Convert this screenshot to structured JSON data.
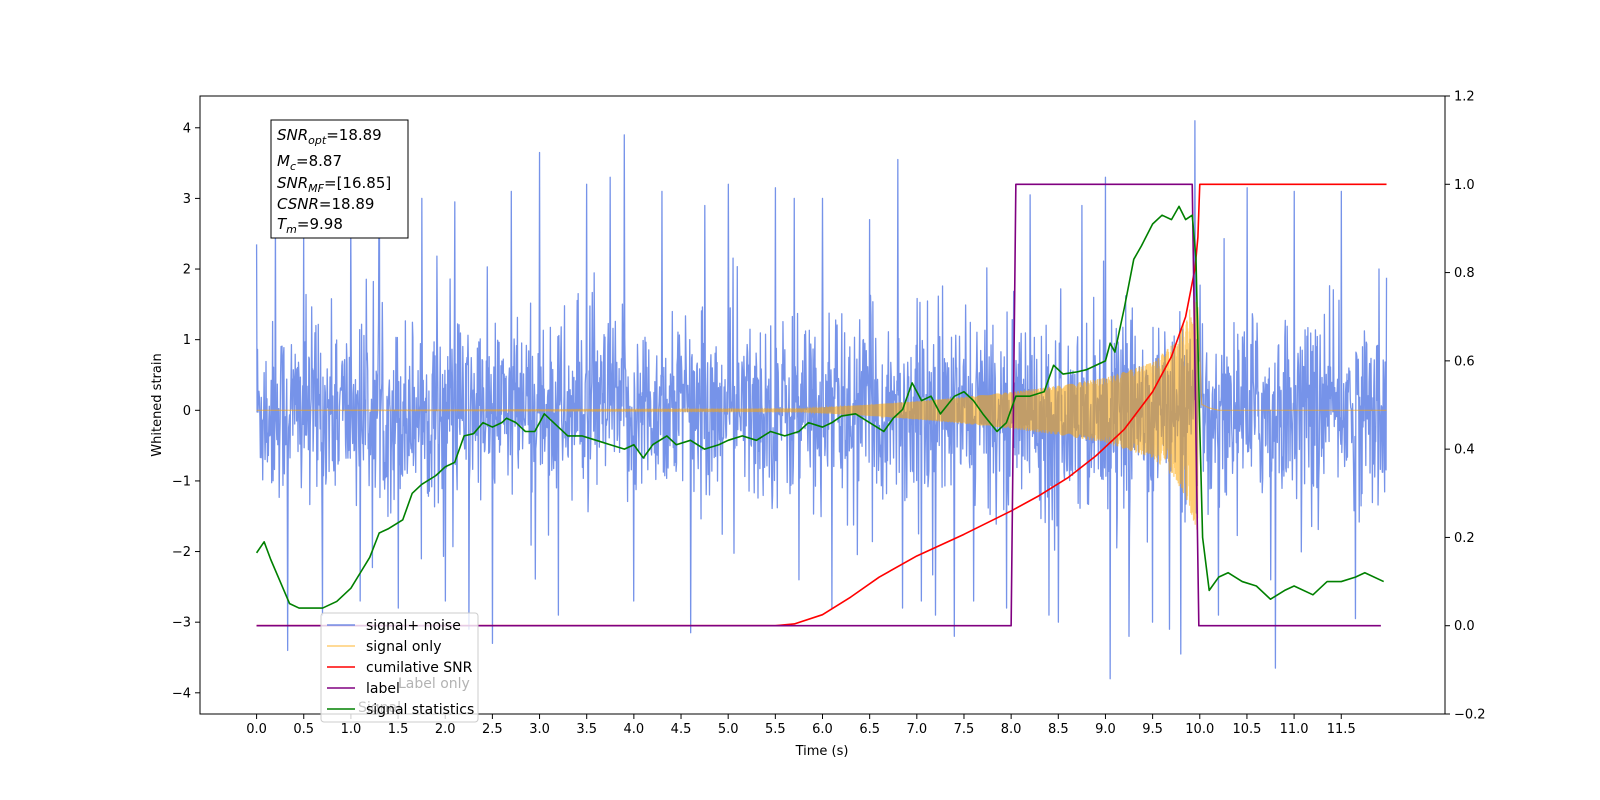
{
  "chart_data": {
    "type": "line",
    "xlabel": "Time (s)",
    "ylabel": "Whitened strain",
    "xlim": [
      -0.6,
      12.6
    ],
    "ylim": [
      -4.3,
      4.45
    ],
    "y2lim": [
      -0.2,
      1.2
    ],
    "x_ticks": [
      0.0,
      0.5,
      1.0,
      1.5,
      2.0,
      2.5,
      3.0,
      3.5,
      4.0,
      4.5,
      5.0,
      5.5,
      6.0,
      6.5,
      7.0,
      7.5,
      8.0,
      8.5,
      9.0,
      9.5,
      10.0,
      10.5,
      11.0,
      11.5
    ],
    "x_tick_labels": [
      "0.0",
      "0.5",
      "1.0",
      "1.5",
      "2.0",
      "2.5",
      "3.0",
      "3.5",
      "4.0",
      "4.5",
      "5.0",
      "5.5",
      "6.0",
      "6.5",
      "7.0",
      "7.5",
      "8.0",
      "8.5",
      "9.0",
      "9.5",
      "10.0",
      "10.5",
      "11.0",
      "11.5"
    ],
    "y_ticks": [
      -4,
      -3,
      -2,
      -1,
      0,
      1,
      2,
      3,
      4
    ],
    "y_tick_labels": [
      "−4",
      "−3",
      "−2",
      "−1",
      "0",
      "1",
      "2",
      "3",
      "4"
    ],
    "y2_ticks": [
      -0.2,
      0.0,
      0.2,
      0.4,
      0.6,
      0.8,
      1.0,
      1.2
    ],
    "y2_tick_labels": [
      "−0.2",
      "0.0",
      "0.2",
      "0.4",
      "0.6",
      "0.8",
      "1.0",
      "1.2"
    ],
    "legend_placement": "lower-left",
    "legend": [
      {
        "label": "signal+ noise",
        "color": "#4169e1"
      },
      {
        "label": "signal only",
        "color": "#ffa500"
      },
      {
        "label": "cumilative SNR",
        "color": "#ff0000"
      },
      {
        "label": "label",
        "color": "#800080"
      },
      {
        "label": "signal statistics",
        "color": "#008000"
      }
    ],
    "hidden_legend_text": [
      "Label only",
      "Signal"
    ],
    "annotation": {
      "lines": [
        {
          "main": "SNR",
          "sub": "opt",
          "value": "=18.89"
        },
        {
          "main": "M",
          "sub": "c",
          "value": "=8.87"
        },
        {
          "main": "SNR",
          "sub": "MF",
          "value": "=[16.85]"
        },
        {
          "main": "CSNR",
          "sub": "",
          "value": "=18.89"
        },
        {
          "main": "T",
          "sub": "m",
          "value": "=9.98"
        }
      ]
    },
    "series": [
      {
        "name": "signal+ noise",
        "axis": "left",
        "color": "#4169e1",
        "kind": "noise",
        "x_range": [
          0.0,
          11.98
        ],
        "envelope_typical": 1.6,
        "peaks": [
          [
            0.0,
            2.35
          ],
          [
            0.2,
            2.7
          ],
          [
            0.33,
            -3.4
          ],
          [
            0.5,
            2.6
          ],
          [
            0.7,
            -2.9
          ],
          [
            1.0,
            2.8
          ],
          [
            1.1,
            -2.7
          ],
          [
            1.3,
            3.1
          ],
          [
            1.5,
            -2.8
          ],
          [
            1.75,
            3.0
          ],
          [
            2.0,
            -2.7
          ],
          [
            2.1,
            2.95
          ],
          [
            2.25,
            -3.1
          ],
          [
            2.5,
            -3.3
          ],
          [
            2.7,
            3.1
          ],
          [
            3.0,
            3.65
          ],
          [
            3.2,
            -2.9
          ],
          [
            3.5,
            3.2
          ],
          [
            3.75,
            3.3
          ],
          [
            3.9,
            3.9
          ],
          [
            4.0,
            -2.7
          ],
          [
            4.3,
            3.1
          ],
          [
            4.6,
            -3.15
          ],
          [
            4.75,
            2.9
          ],
          [
            5.0,
            3.2
          ],
          [
            5.5,
            3.15
          ],
          [
            5.7,
            3.0
          ],
          [
            5.75,
            -2.4
          ],
          [
            6.0,
            3.0
          ],
          [
            6.1,
            -2.8
          ],
          [
            6.5,
            2.7
          ],
          [
            6.8,
            3.55
          ],
          [
            6.85,
            -2.8
          ],
          [
            7.05,
            -2.7
          ],
          [
            7.2,
            -2.9
          ],
          [
            7.4,
            -3.2
          ],
          [
            7.6,
            -2.7
          ],
          [
            7.95,
            -2.8
          ],
          [
            8.2,
            3.05
          ],
          [
            8.4,
            -2.9
          ],
          [
            8.5,
            -3.0
          ],
          [
            8.75,
            2.9
          ],
          [
            9.0,
            3.3
          ],
          [
            9.05,
            -3.8
          ],
          [
            9.25,
            -3.2
          ],
          [
            9.5,
            -3.0
          ],
          [
            9.68,
            -3.1
          ],
          [
            9.8,
            -3.45
          ],
          [
            9.95,
            4.1
          ],
          [
            10.2,
            -2.9
          ],
          [
            10.5,
            3.15
          ],
          [
            10.75,
            -2.4
          ],
          [
            10.8,
            -3.65
          ],
          [
            11.0,
            3.1
          ],
          [
            11.5,
            3.1
          ],
          [
            11.65,
            -2.95
          ],
          [
            11.9,
            2.0
          ]
        ]
      },
      {
        "name": "signal only",
        "axis": "left",
        "color": "#ffa500",
        "kind": "chirp",
        "x_range": [
          0.0,
          11.98
        ],
        "merger_time": 9.98,
        "amplitude_points": [
          [
            0.0,
            0.0
          ],
          [
            5.8,
            0.02
          ],
          [
            6.0,
            0.04
          ],
          [
            6.5,
            0.08
          ],
          [
            7.0,
            0.13
          ],
          [
            7.5,
            0.19
          ],
          [
            8.0,
            0.26
          ],
          [
            8.5,
            0.35
          ],
          [
            9.0,
            0.46
          ],
          [
            9.5,
            0.68
          ],
          [
            9.75,
            0.98
          ],
          [
            9.9,
            1.45
          ],
          [
            9.98,
            1.75
          ],
          [
            10.02,
            0.1
          ],
          [
            10.1,
            0.04
          ],
          [
            10.2,
            0.0
          ],
          [
            11.98,
            0.0
          ]
        ]
      },
      {
        "name": "cumilative SNR",
        "axis": "right",
        "color": "#ff0000",
        "points": [
          [
            0.0,
            0.0
          ],
          [
            5.5,
            0.0
          ],
          [
            5.7,
            0.004
          ],
          [
            6.0,
            0.025
          ],
          [
            6.3,
            0.065
          ],
          [
            6.6,
            0.11
          ],
          [
            7.0,
            0.158
          ],
          [
            7.5,
            0.207
          ],
          [
            8.0,
            0.26
          ],
          [
            8.3,
            0.295
          ],
          [
            8.6,
            0.335
          ],
          [
            8.9,
            0.385
          ],
          [
            9.2,
            0.445
          ],
          [
            9.5,
            0.53
          ],
          [
            9.7,
            0.61
          ],
          [
            9.85,
            0.7
          ],
          [
            9.95,
            0.81
          ],
          [
            9.98,
            0.88
          ],
          [
            10.0,
            1.0
          ],
          [
            11.98,
            1.0
          ]
        ]
      },
      {
        "name": "label",
        "axis": "right",
        "color": "#800080",
        "points": [
          [
            0.0,
            0.0
          ],
          [
            8.0,
            0.0
          ],
          [
            8.05,
            1.0
          ],
          [
            9.92,
            1.0
          ],
          [
            9.99,
            0.0
          ],
          [
            11.92,
            0.0
          ]
        ]
      },
      {
        "name": "signal statistics",
        "axis": "right",
        "color": "#008000",
        "points": [
          [
            0.0,
            0.165
          ],
          [
            0.08,
            0.19
          ],
          [
            0.15,
            0.15
          ],
          [
            0.25,
            0.1
          ],
          [
            0.35,
            0.05
          ],
          [
            0.45,
            0.04
          ],
          [
            0.55,
            0.04
          ],
          [
            0.7,
            0.04
          ],
          [
            0.85,
            0.055
          ],
          [
            1.0,
            0.085
          ],
          [
            1.1,
            0.12
          ],
          [
            1.2,
            0.155
          ],
          [
            1.3,
            0.21
          ],
          [
            1.4,
            0.22
          ],
          [
            1.55,
            0.24
          ],
          [
            1.65,
            0.3
          ],
          [
            1.75,
            0.32
          ],
          [
            1.9,
            0.34
          ],
          [
            2.0,
            0.36
          ],
          [
            2.1,
            0.37
          ],
          [
            2.2,
            0.43
          ],
          [
            2.3,
            0.435
          ],
          [
            2.4,
            0.46
          ],
          [
            2.5,
            0.45
          ],
          [
            2.6,
            0.46
          ],
          [
            2.65,
            0.47
          ],
          [
            2.75,
            0.46
          ],
          [
            2.85,
            0.44
          ],
          [
            2.95,
            0.44
          ],
          [
            3.05,
            0.48
          ],
          [
            3.15,
            0.46
          ],
          [
            3.3,
            0.43
          ],
          [
            3.45,
            0.43
          ],
          [
            3.6,
            0.42
          ],
          [
            3.75,
            0.41
          ],
          [
            3.9,
            0.4
          ],
          [
            4.0,
            0.41
          ],
          [
            4.1,
            0.38
          ],
          [
            4.2,
            0.41
          ],
          [
            4.35,
            0.43
          ],
          [
            4.45,
            0.41
          ],
          [
            4.6,
            0.42
          ],
          [
            4.75,
            0.4
          ],
          [
            4.9,
            0.41
          ],
          [
            5.0,
            0.42
          ],
          [
            5.15,
            0.43
          ],
          [
            5.3,
            0.42
          ],
          [
            5.45,
            0.44
          ],
          [
            5.6,
            0.43
          ],
          [
            5.75,
            0.44
          ],
          [
            5.85,
            0.46
          ],
          [
            6.0,
            0.45
          ],
          [
            6.1,
            0.46
          ],
          [
            6.2,
            0.475
          ],
          [
            6.35,
            0.48
          ],
          [
            6.5,
            0.46
          ],
          [
            6.65,
            0.44
          ],
          [
            6.75,
            0.47
          ],
          [
            6.85,
            0.49
          ],
          [
            6.95,
            0.55
          ],
          [
            7.05,
            0.51
          ],
          [
            7.15,
            0.52
          ],
          [
            7.25,
            0.48
          ],
          [
            7.4,
            0.52
          ],
          [
            7.5,
            0.53
          ],
          [
            7.6,
            0.51
          ],
          [
            7.7,
            0.48
          ],
          [
            7.85,
            0.44
          ],
          [
            7.95,
            0.46
          ],
          [
            8.05,
            0.52
          ],
          [
            8.2,
            0.52
          ],
          [
            8.35,
            0.53
          ],
          [
            8.45,
            0.59
          ],
          [
            8.55,
            0.57
          ],
          [
            8.7,
            0.575
          ],
          [
            8.8,
            0.58
          ],
          [
            8.9,
            0.59
          ],
          [
            9.0,
            0.6
          ],
          [
            9.05,
            0.64
          ],
          [
            9.1,
            0.62
          ],
          [
            9.2,
            0.72
          ],
          [
            9.3,
            0.83
          ],
          [
            9.38,
            0.86
          ],
          [
            9.5,
            0.91
          ],
          [
            9.6,
            0.93
          ],
          [
            9.7,
            0.92
          ],
          [
            9.78,
            0.95
          ],
          [
            9.85,
            0.92
          ],
          [
            9.92,
            0.93
          ],
          [
            9.96,
            0.83
          ],
          [
            10.0,
            0.45
          ],
          [
            10.03,
            0.2
          ],
          [
            10.1,
            0.08
          ],
          [
            10.2,
            0.11
          ],
          [
            10.3,
            0.12
          ],
          [
            10.45,
            0.1
          ],
          [
            10.6,
            0.09
          ],
          [
            10.75,
            0.06
          ],
          [
            10.9,
            0.08
          ],
          [
            11.0,
            0.09
          ],
          [
            11.2,
            0.07
          ],
          [
            11.35,
            0.1
          ],
          [
            11.5,
            0.1
          ],
          [
            11.65,
            0.11
          ],
          [
            11.75,
            0.12
          ],
          [
            11.95,
            0.1
          ]
        ]
      }
    ]
  }
}
